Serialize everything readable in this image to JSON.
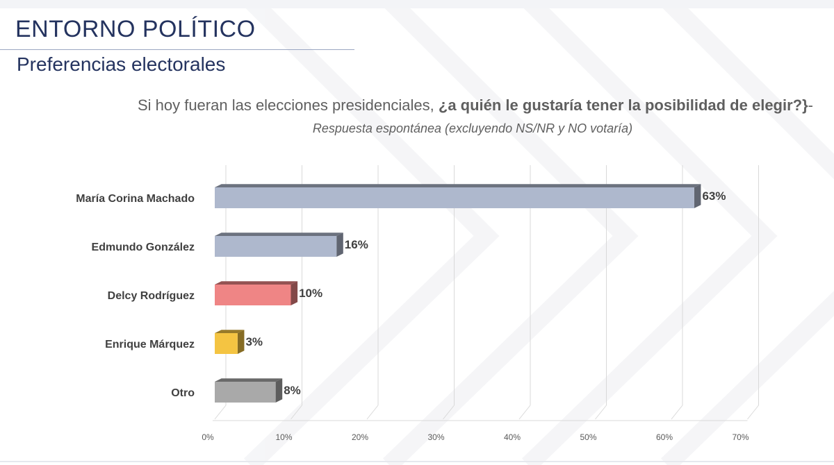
{
  "header": {
    "title": "ENTORNO POLÍTICO",
    "subtitle": "Preferencias electorales"
  },
  "question": {
    "lead": "Si hoy fueran las elecciones presidenciales, ",
    "emphasis": "¿a quién le gustaría tener la posibilidad de elegir?}",
    "tail": "-",
    "note": "Respuesta espontánea (excluyendo NS/NR y NO votaría)"
  },
  "chart_data": {
    "type": "bar",
    "orientation": "horizontal",
    "categories": [
      "María Corina Machado",
      "Edmundo González",
      "Delcy Rodríguez",
      "Enrique Márquez",
      "Otro"
    ],
    "values": [
      63,
      16,
      10,
      3,
      8
    ],
    "value_labels": [
      "63%",
      "16%",
      "10%",
      "3%",
      "8%"
    ],
    "colors": [
      "#aeb8cd",
      "#aeb8cd",
      "#ef8585",
      "#f4c442",
      "#a9a9a9"
    ],
    "x_ticks": [
      "0%",
      "10%",
      "20%",
      "30%",
      "40%",
      "50%",
      "60%",
      "70%"
    ],
    "xlim": [
      0,
      70
    ],
    "grid": true,
    "style": "3d"
  }
}
